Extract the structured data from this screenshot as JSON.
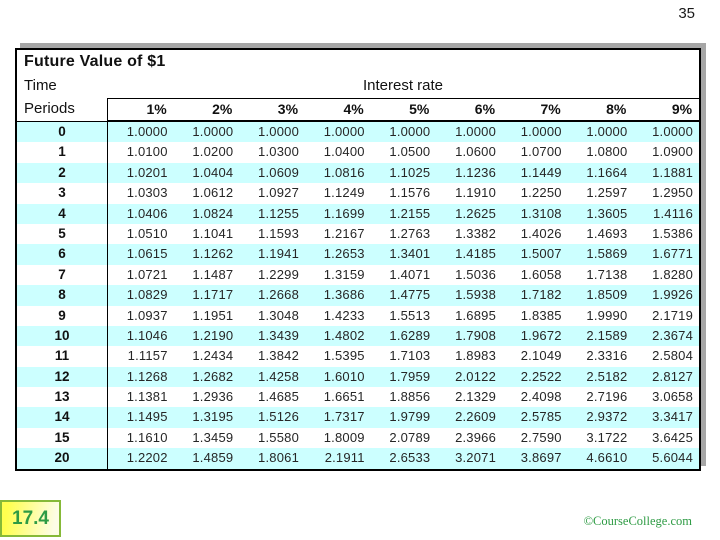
{
  "page_number": "35",
  "table": {
    "title": "Future Value of $1",
    "row_label_line1": "Time",
    "row_label_line2": "Periods",
    "column_group_label": "Interest rate",
    "rate_headers": [
      "1%",
      "2%",
      "3%",
      "4%",
      "5%",
      "6%",
      "7%",
      "8%",
      "9%"
    ],
    "rows": [
      {
        "period": "0",
        "values": [
          "1.0000",
          "1.0000",
          "1.0000",
          "1.0000",
          "1.0000",
          "1.0000",
          "1.0000",
          "1.0000",
          "1.0000"
        ]
      },
      {
        "period": "1",
        "values": [
          "1.0100",
          "1.0200",
          "1.0300",
          "1.0400",
          "1.0500",
          "1.0600",
          "1.0700",
          "1.0800",
          "1.0900"
        ]
      },
      {
        "period": "2",
        "values": [
          "1.0201",
          "1.0404",
          "1.0609",
          "1.0816",
          "1.1025",
          "1.1236",
          "1.1449",
          "1.1664",
          "1.1881"
        ]
      },
      {
        "period": "3",
        "values": [
          "1.0303",
          "1.0612",
          "1.0927",
          "1.1249",
          "1.1576",
          "1.1910",
          "1.2250",
          "1.2597",
          "1.2950"
        ]
      },
      {
        "period": "4",
        "values": [
          "1.0406",
          "1.0824",
          "1.1255",
          "1.1699",
          "1.2155",
          "1.2625",
          "1.3108",
          "1.3605",
          "1.4116"
        ]
      },
      {
        "period": "5",
        "values": [
          "1.0510",
          "1.1041",
          "1.1593",
          "1.2167",
          "1.2763",
          "1.3382",
          "1.4026",
          "1.4693",
          "1.5386"
        ]
      },
      {
        "period": "6",
        "values": [
          "1.0615",
          "1.1262",
          "1.1941",
          "1.2653",
          "1.3401",
          "1.4185",
          "1.5007",
          "1.5869",
          "1.6771"
        ]
      },
      {
        "period": "7",
        "values": [
          "1.0721",
          "1.1487",
          "1.2299",
          "1.3159",
          "1.4071",
          "1.5036",
          "1.6058",
          "1.7138",
          "1.8280"
        ]
      },
      {
        "period": "8",
        "values": [
          "1.0829",
          "1.1717",
          "1.2668",
          "1.3686",
          "1.4775",
          "1.5938",
          "1.7182",
          "1.8509",
          "1.9926"
        ]
      },
      {
        "period": "9",
        "values": [
          "1.0937",
          "1.1951",
          "1.3048",
          "1.4233",
          "1.5513",
          "1.6895",
          "1.8385",
          "1.9990",
          "2.1719"
        ]
      },
      {
        "period": "10",
        "values": [
          "1.1046",
          "1.2190",
          "1.3439",
          "1.4802",
          "1.6289",
          "1.7908",
          "1.9672",
          "2.1589",
          "2.3674"
        ]
      },
      {
        "period": "11",
        "values": [
          "1.1157",
          "1.2434",
          "1.3842",
          "1.5395",
          "1.7103",
          "1.8983",
          "2.1049",
          "2.3316",
          "2.5804"
        ]
      },
      {
        "period": "12",
        "values": [
          "1.1268",
          "1.2682",
          "1.4258",
          "1.6010",
          "1.7959",
          "2.0122",
          "2.2522",
          "2.5182",
          "2.8127"
        ]
      },
      {
        "period": "13",
        "values": [
          "1.1381",
          "1.2936",
          "1.4685",
          "1.6651",
          "1.8856",
          "2.1329",
          "2.4098",
          "2.7196",
          "3.0658"
        ]
      },
      {
        "period": "14",
        "values": [
          "1.1495",
          "1.3195",
          "1.5126",
          "1.7317",
          "1.9799",
          "2.2609",
          "2.5785",
          "2.9372",
          "3.3417"
        ]
      },
      {
        "period": "15",
        "values": [
          "1.1610",
          "1.3459",
          "1.5580",
          "1.8009",
          "2.0789",
          "2.3966",
          "2.7590",
          "3.1722",
          "3.6425"
        ]
      },
      {
        "period": "20",
        "values": [
          "1.2202",
          "1.4859",
          "1.8061",
          "2.1911",
          "2.6533",
          "3.2071",
          "3.8697",
          "4.6610",
          "5.6044"
        ]
      }
    ]
  },
  "footer": {
    "slide_number": "17.4",
    "copyright": "©CourseCollege.com"
  },
  "colors": {
    "row_highlight": "#ccffff",
    "accent_green": "#2e9b44",
    "shadow_gray": "#a6a6a6",
    "badge_border": "#86b938",
    "badge_yellow": "#ffff4f"
  }
}
